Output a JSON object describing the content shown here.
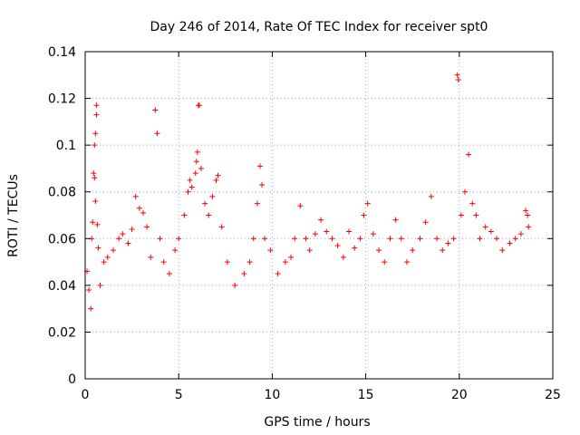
{
  "chart_data": {
    "type": "scatter",
    "title": "Day 246 of 2014, Rate Of TEC Index for receiver spt0",
    "xlabel": "GPS time / hours",
    "ylabel": "ROTI / TECUs",
    "xlim": [
      0,
      25
    ],
    "ylim": [
      0,
      0.14
    ],
    "x_ticks": [
      0,
      5,
      10,
      15,
      20,
      25
    ],
    "x_tick_labels": [
      "0",
      "5",
      "10",
      "15",
      "20",
      "25"
    ],
    "y_ticks": [
      0,
      0.02,
      0.04,
      0.06,
      0.08,
      0.1,
      0.12,
      0.14
    ],
    "y_tick_labels": [
      "0",
      "0.02",
      "0.04",
      "0.06",
      "0.08",
      "0.1",
      "0.12",
      "0.14"
    ],
    "grid": true,
    "marker": "+",
    "color": "#ff0000",
    "series": [
      {
        "name": "ROTI",
        "points": [
          [
            0.1,
            0.046
          ],
          [
            0.2,
            0.038
          ],
          [
            0.3,
            0.03
          ],
          [
            0.35,
            0.06
          ],
          [
            0.4,
            0.067
          ],
          [
            0.45,
            0.088
          ],
          [
            0.5,
            0.1
          ],
          [
            0.55,
            0.105
          ],
          [
            0.6,
            0.113
          ],
          [
            0.6,
            0.117
          ],
          [
            0.5,
            0.086
          ],
          [
            0.55,
            0.076
          ],
          [
            0.65,
            0.066
          ],
          [
            0.7,
            0.056
          ],
          [
            0.8,
            0.04
          ],
          [
            1.0,
            0.05
          ],
          [
            1.2,
            0.052
          ],
          [
            1.5,
            0.055
          ],
          [
            1.8,
            0.06
          ],
          [
            2.0,
            0.062
          ],
          [
            2.3,
            0.058
          ],
          [
            2.5,
            0.064
          ],
          [
            2.7,
            0.078
          ],
          [
            2.9,
            0.073
          ],
          [
            3.1,
            0.071
          ],
          [
            3.3,
            0.065
          ],
          [
            3.5,
            0.052
          ],
          [
            3.75,
            0.115
          ],
          [
            3.85,
            0.105
          ],
          [
            4.0,
            0.06
          ],
          [
            4.2,
            0.05
          ],
          [
            4.5,
            0.045
          ],
          [
            4.8,
            0.055
          ],
          [
            5.0,
            0.06
          ],
          [
            5.3,
            0.07
          ],
          [
            5.5,
            0.08
          ],
          [
            5.6,
            0.085
          ],
          [
            5.7,
            0.082
          ],
          [
            5.9,
            0.088
          ],
          [
            5.95,
            0.093
          ],
          [
            6.0,
            0.097
          ],
          [
            6.05,
            0.117
          ],
          [
            6.1,
            0.117
          ],
          [
            6.2,
            0.09
          ],
          [
            6.4,
            0.075
          ],
          [
            6.6,
            0.07
          ],
          [
            6.8,
            0.078
          ],
          [
            7.0,
            0.085
          ],
          [
            7.1,
            0.087
          ],
          [
            7.3,
            0.065
          ],
          [
            7.6,
            0.05
          ],
          [
            8.0,
            0.04
          ],
          [
            8.5,
            0.045
          ],
          [
            8.8,
            0.05
          ],
          [
            9.0,
            0.06
          ],
          [
            9.2,
            0.075
          ],
          [
            9.35,
            0.091
          ],
          [
            9.45,
            0.083
          ],
          [
            9.6,
            0.06
          ],
          [
            9.9,
            0.055
          ],
          [
            10.3,
            0.045
          ],
          [
            10.7,
            0.05
          ],
          [
            11.0,
            0.052
          ],
          [
            11.2,
            0.06
          ],
          [
            11.5,
            0.074
          ],
          [
            11.8,
            0.06
          ],
          [
            12.0,
            0.055
          ],
          [
            12.3,
            0.062
          ],
          [
            12.6,
            0.068
          ],
          [
            12.9,
            0.063
          ],
          [
            13.2,
            0.06
          ],
          [
            13.5,
            0.057
          ],
          [
            13.8,
            0.052
          ],
          [
            14.1,
            0.063
          ],
          [
            14.4,
            0.056
          ],
          [
            14.7,
            0.06
          ],
          [
            14.9,
            0.07
          ],
          [
            15.1,
            0.075
          ],
          [
            15.4,
            0.062
          ],
          [
            15.7,
            0.055
          ],
          [
            16.0,
            0.05
          ],
          [
            16.3,
            0.06
          ],
          [
            16.6,
            0.068
          ],
          [
            16.9,
            0.06
          ],
          [
            17.2,
            0.05
          ],
          [
            17.5,
            0.055
          ],
          [
            17.9,
            0.06
          ],
          [
            18.2,
            0.067
          ],
          [
            18.5,
            0.078
          ],
          [
            18.8,
            0.06
          ],
          [
            19.1,
            0.055
          ],
          [
            19.4,
            0.058
          ],
          [
            19.7,
            0.06
          ],
          [
            19.9,
            0.13
          ],
          [
            19.95,
            0.128
          ],
          [
            20.1,
            0.07
          ],
          [
            20.3,
            0.08
          ],
          [
            20.5,
            0.096
          ],
          [
            20.7,
            0.075
          ],
          [
            20.9,
            0.07
          ],
          [
            21.1,
            0.06
          ],
          [
            21.4,
            0.065
          ],
          [
            21.7,
            0.063
          ],
          [
            22.0,
            0.06
          ],
          [
            22.3,
            0.055
          ],
          [
            22.7,
            0.058
          ],
          [
            23.0,
            0.06
          ],
          [
            23.3,
            0.062
          ],
          [
            23.55,
            0.072
          ],
          [
            23.65,
            0.07
          ],
          [
            23.7,
            0.065
          ]
        ]
      }
    ]
  }
}
